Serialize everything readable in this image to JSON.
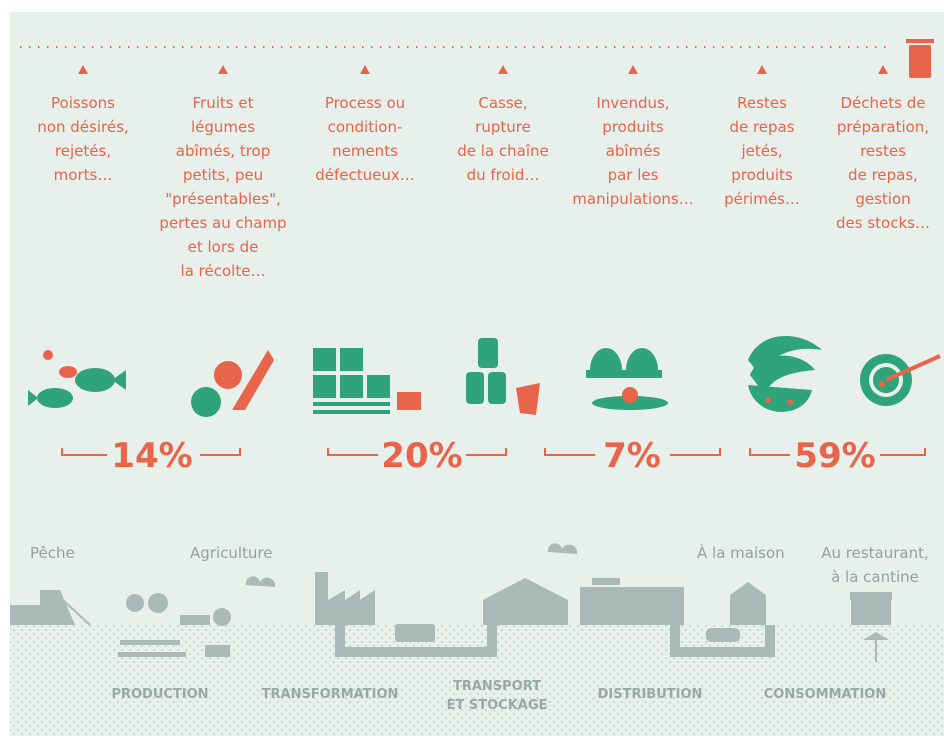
{
  "captions": [
    [
      "Poissons",
      "non désirés,",
      "rejetés,",
      "morts…"
    ],
    [
      "Fruits et",
      "légumes",
      "abîmés, trop",
      "petits, peu",
      "\"présentables\",",
      "pertes au champ",
      "et lors de",
      "la récolte…"
    ],
    [
      "Process ou",
      "condition-",
      "nements",
      "défectueux…"
    ],
    [
      "Casse,",
      "rupture",
      "de la chaîne",
      "du froid…"
    ],
    [
      "Invendus,",
      "produits",
      "abîmés",
      "par les",
      "manipulations…"
    ],
    [
      "Restes",
      "de repas",
      "jetés,",
      "produits",
      "périmés…"
    ],
    [
      "Déchets de",
      "préparation,",
      "restes",
      "de repas,",
      "gestion",
      "des stocks…"
    ]
  ],
  "percentages": [
    "14%",
    "20%",
    "7%",
    "59%"
  ],
  "places": [
    [
      "Pêche"
    ],
    [
      "Agriculture"
    ],
    [
      "À la maison"
    ],
    [
      "Au restaurant,",
      "à la cantine"
    ]
  ],
  "stages": [
    [
      "PRODUCTION"
    ],
    [
      "TRANSFORMATION"
    ],
    [
      "TRANSPORT",
      "ET STOCKAGE"
    ],
    [
      "DISTRIBUTION"
    ],
    [
      "CONSOMMATION"
    ]
  ]
}
